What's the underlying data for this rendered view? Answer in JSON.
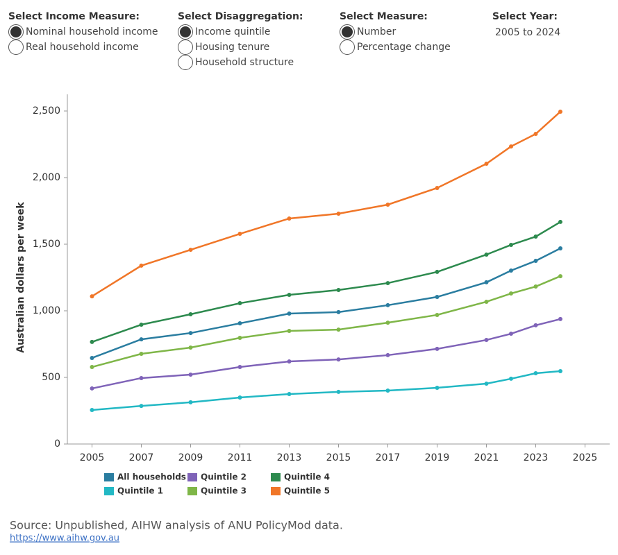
{
  "controls": [
    {
      "label": "Select Income Measure:",
      "options": [
        {
          "label": "Nominal household income",
          "selected": true
        },
        {
          "label": "Real household income",
          "selected": false
        }
      ]
    },
    {
      "label": "Select Disaggregation:",
      "options": [
        {
          "label": "Income quintile",
          "selected": true
        },
        {
          "label": "Housing tenure",
          "selected": false
        },
        {
          "label": "Household structure",
          "selected": false
        }
      ]
    },
    {
      "label": "Select Measure:",
      "options": [
        {
          "label": "Number",
          "selected": true
        },
        {
          "label": "Percentage change",
          "selected": false
        }
      ]
    }
  ],
  "year": {
    "label": "Select Year:",
    "value": "2005 to 2024"
  },
  "chart_data": {
    "type": "line",
    "y_label": "Australian dollars per week",
    "x": [
      2005,
      2007,
      2009,
      2011,
      2013,
      2015,
      2017,
      2019,
      2021,
      2022,
      2023,
      2024
    ],
    "xlim": [
      2004,
      2026
    ],
    "xticks": [
      2005,
      2007,
      2009,
      2011,
      2013,
      2015,
      2017,
      2019,
      2021,
      2023,
      2025
    ],
    "ylim": [
      0,
      2625
    ],
    "yticks": [
      0,
      500,
      {
        "value": 1000,
        "label": "1,000"
      },
      {
        "value": 1500,
        "label": "1,500"
      },
      {
        "value": 2000,
        "label": "2,000"
      },
      {
        "value": 2500,
        "label": "2,500"
      }
    ],
    "grid": false,
    "series": [
      {
        "name": "All households",
        "color": "#2a7da0",
        "values": [
          646,
          786,
          833,
          906,
          979,
          990,
          1042,
          1104,
          1214,
          1302,
          1375,
          1469
        ]
      },
      {
        "name": "Quintile 1",
        "color": "#22b8c4",
        "values": [
          255,
          286,
          313,
          349,
          375,
          391,
          401,
          422,
          453,
          490,
          531,
          547
        ]
      },
      {
        "name": "Quintile 2",
        "color": "#7f63b8",
        "values": [
          417,
          495,
          521,
          578,
          620,
          635,
          667,
          714,
          781,
          828,
          891,
          938
        ]
      },
      {
        "name": "Quintile 3",
        "color": "#7fb648",
        "values": [
          578,
          677,
          724,
          797,
          849,
          859,
          911,
          969,
          1068,
          1130,
          1182,
          1260
        ]
      },
      {
        "name": "Quintile 4",
        "color": "#2d8a4e",
        "values": [
          766,
          896,
          974,
          1057,
          1120,
          1156,
          1208,
          1292,
          1422,
          1495,
          1557,
          1667
        ]
      },
      {
        "name": "Quintile 5",
        "color": "#f07628",
        "values": [
          1109,
          1339,
          1458,
          1578,
          1693,
          1729,
          1797,
          1922,
          2104,
          2234,
          2328,
          2495
        ]
      }
    ]
  },
  "source": {
    "text": "Source: Unpublished, AIHW analysis of ANU PolicyMod data.",
    "link": "https://www.aihw.gov.au"
  }
}
